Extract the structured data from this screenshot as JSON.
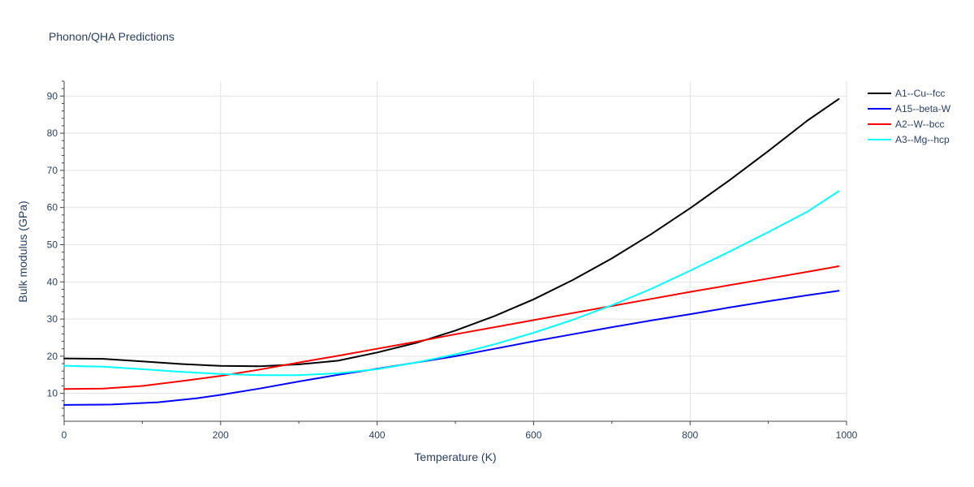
{
  "chart_data": {
    "type": "line",
    "title": "Phonon/QHA Predictions",
    "xlabel": "Temperature (K)",
    "ylabel": "Bulk modulus (GPa)",
    "xlim": [
      0,
      1000
    ],
    "ylim": [
      2.5,
      94
    ],
    "x_ticks": [
      0,
      200,
      400,
      600,
      800,
      1000
    ],
    "y_ticks": [
      10,
      20,
      30,
      40,
      50,
      60,
      70,
      80,
      90
    ],
    "grid": true,
    "legend_position": "right",
    "series": [
      {
        "name": "A1--Cu--fcc",
        "color": "#000000",
        "x": [
          0,
          50,
          100,
          150,
          200,
          250,
          300,
          350,
          400,
          450,
          500,
          550,
          600,
          650,
          700,
          750,
          800,
          850,
          900,
          950,
          990
        ],
        "y": [
          19.4,
          19.3,
          18.6,
          17.9,
          17.4,
          17.3,
          17.8,
          18.8,
          21.0,
          23.6,
          26.9,
          30.8,
          35.3,
          40.5,
          46.3,
          52.8,
          59.8,
          67.3,
          75.2,
          83.4,
          89.2
        ]
      },
      {
        "name": "A15--beta-W",
        "color": "#0000ff",
        "x": [
          0,
          60,
          120,
          170,
          200,
          250,
          300,
          350,
          400,
          450,
          500,
          550,
          600,
          650,
          700,
          750,
          800,
          850,
          900,
          950,
          990
        ],
        "y": [
          6.9,
          7.0,
          7.6,
          8.7,
          9.6,
          11.3,
          13.2,
          15.0,
          16.6,
          18.3,
          20.0,
          22.0,
          24.0,
          25.9,
          27.8,
          29.6,
          31.3,
          33.1,
          34.8,
          36.4,
          37.6
        ]
      },
      {
        "name": "A2--W--bcc",
        "color": "#ff0000",
        "x": [
          0,
          50,
          100,
          150,
          200,
          250,
          300,
          350,
          400,
          450,
          500,
          550,
          600,
          650,
          700,
          750,
          800,
          850,
          900,
          950,
          990
        ],
        "y": [
          11.2,
          11.3,
          12.0,
          13.3,
          14.7,
          16.4,
          18.3,
          20.1,
          22.0,
          23.9,
          25.9,
          27.8,
          29.7,
          31.6,
          33.5,
          35.4,
          37.3,
          39.1,
          40.9,
          42.7,
          44.2
        ]
      },
      {
        "name": "A3--Mg--hcp",
        "color": "#00ffff",
        "x": [
          0,
          50,
          100,
          150,
          200,
          250,
          300,
          350,
          400,
          450,
          500,
          550,
          600,
          650,
          700,
          750,
          800,
          850,
          900,
          950,
          990
        ],
        "y": [
          17.4,
          17.2,
          16.5,
          15.8,
          15.2,
          14.9,
          14.9,
          15.4,
          16.5,
          18.3,
          20.5,
          23.2,
          26.3,
          29.8,
          33.7,
          38.1,
          43.0,
          48.1,
          53.4,
          58.9,
          64.4
        ]
      }
    ]
  }
}
